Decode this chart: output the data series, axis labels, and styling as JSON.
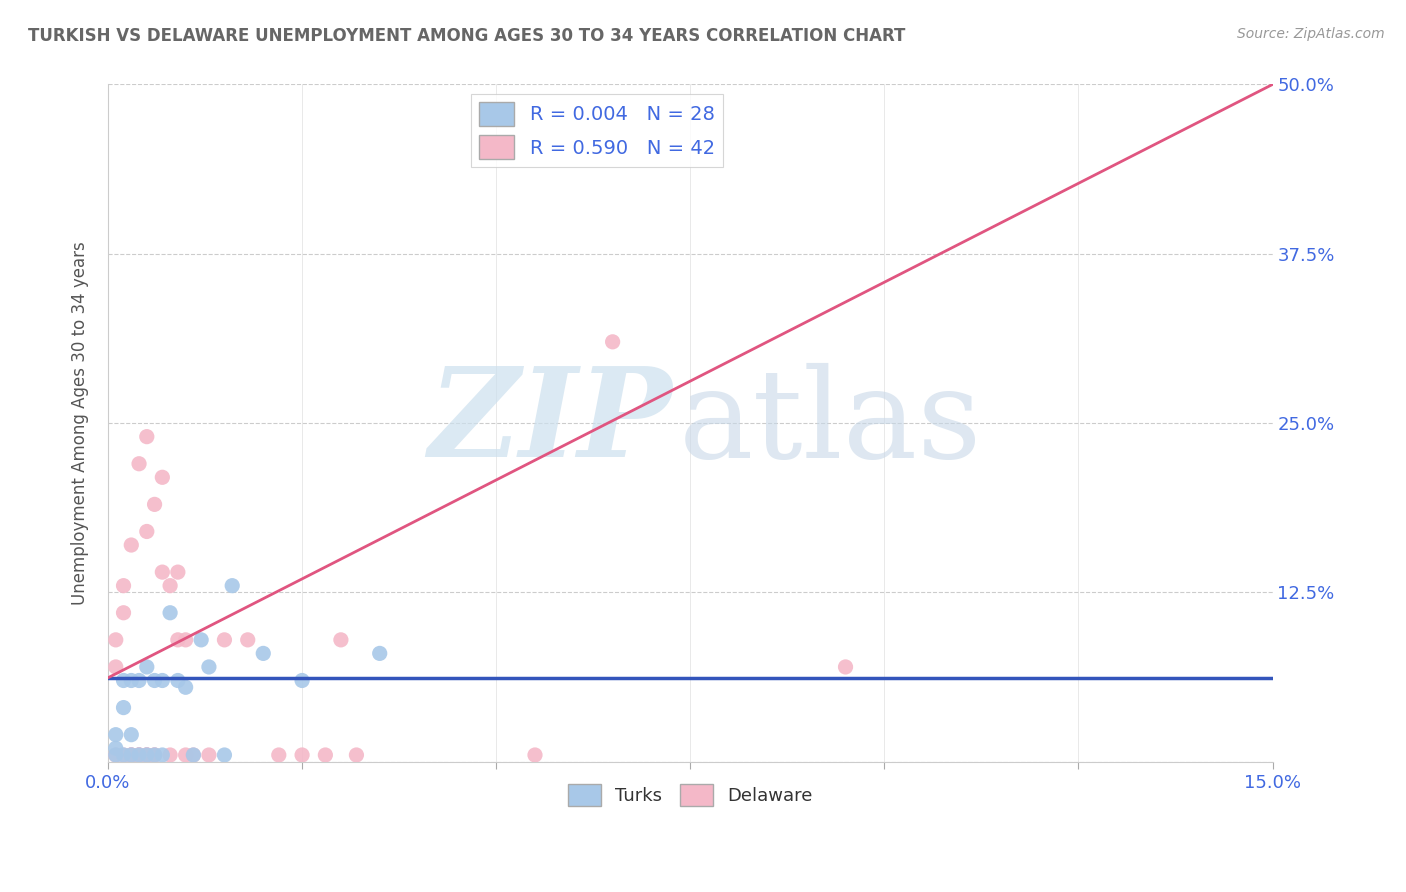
{
  "title": "TURKISH VS DELAWARE UNEMPLOYMENT AMONG AGES 30 TO 34 YEARS CORRELATION CHART",
  "source": "Source: ZipAtlas.com",
  "ylabel_label": "Unemployment Among Ages 30 to 34 years",
  "legend_turks_r": "R = 0.004",
  "legend_turks_n": "N = 28",
  "legend_delaware_r": "R = 0.590",
  "legend_delaware_n": "N = 42",
  "turks_color": "#a8c8e8",
  "delaware_color": "#f4b8c8",
  "turks_line_color": "#3355bb",
  "delaware_line_color": "#e05580",
  "xmin": 0.0,
  "xmax": 0.15,
  "ymin": 0.0,
  "ymax": 0.5,
  "background_color": "#ffffff",
  "grid_color": "#cccccc",
  "turks_x": [
    0.001,
    0.001,
    0.001,
    0.002,
    0.002,
    0.002,
    0.003,
    0.003,
    0.003,
    0.004,
    0.004,
    0.005,
    0.005,
    0.006,
    0.006,
    0.007,
    0.007,
    0.008,
    0.009,
    0.01,
    0.011,
    0.012,
    0.013,
    0.015,
    0.016,
    0.02,
    0.025,
    0.035
  ],
  "turks_y": [
    0.02,
    0.005,
    0.01,
    0.06,
    0.04,
    0.005,
    0.06,
    0.02,
    0.005,
    0.06,
    0.005,
    0.07,
    0.005,
    0.06,
    0.005,
    0.06,
    0.005,
    0.11,
    0.06,
    0.055,
    0.005,
    0.09,
    0.07,
    0.005,
    0.13,
    0.08,
    0.06,
    0.08
  ],
  "delaware_x": [
    0.001,
    0.001,
    0.001,
    0.002,
    0.002,
    0.002,
    0.003,
    0.003,
    0.003,
    0.003,
    0.004,
    0.004,
    0.004,
    0.004,
    0.005,
    0.005,
    0.005,
    0.005,
    0.005,
    0.006,
    0.006,
    0.006,
    0.007,
    0.007,
    0.008,
    0.008,
    0.009,
    0.009,
    0.01,
    0.01,
    0.011,
    0.013,
    0.015,
    0.018,
    0.022,
    0.025,
    0.028,
    0.03,
    0.032,
    0.055,
    0.065,
    0.095
  ],
  "delaware_y": [
    0.07,
    0.09,
    0.005,
    0.11,
    0.13,
    0.005,
    0.16,
    0.005,
    0.005,
    0.005,
    0.22,
    0.005,
    0.005,
    0.005,
    0.24,
    0.17,
    0.005,
    0.005,
    0.005,
    0.19,
    0.005,
    0.005,
    0.14,
    0.21,
    0.13,
    0.005,
    0.14,
    0.09,
    0.09,
    0.005,
    0.005,
    0.005,
    0.09,
    0.09,
    0.005,
    0.005,
    0.005,
    0.09,
    0.005,
    0.005,
    0.31,
    0.07
  ],
  "turks_line_x0": 0.0,
  "turks_line_y0": 0.062,
  "turks_line_x1": 0.15,
  "turks_line_y1": 0.062,
  "delaware_line_x0": 0.0,
  "delaware_line_y0": 0.062,
  "delaware_line_x1": 0.15,
  "delaware_line_y1": 0.5
}
